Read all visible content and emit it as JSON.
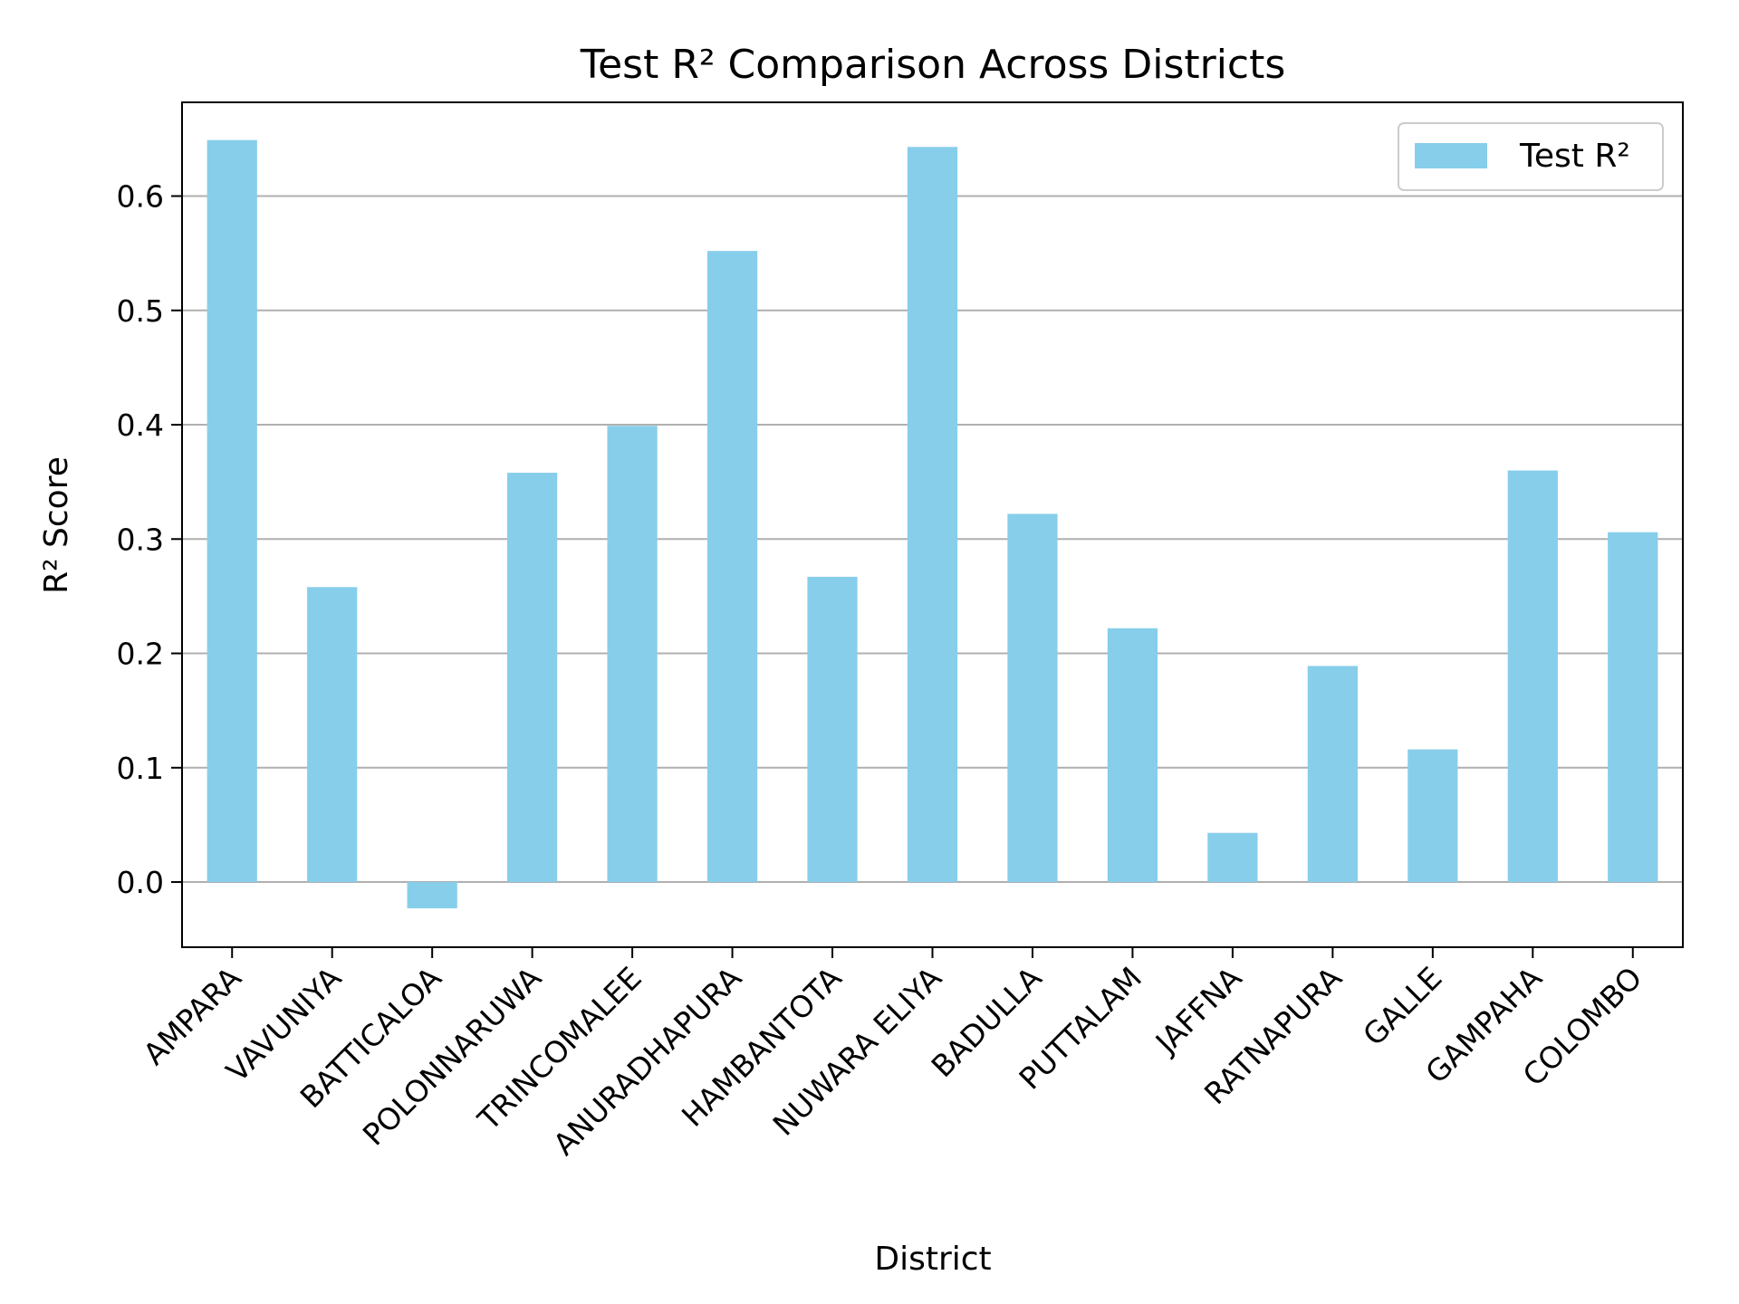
{
  "chart_data": {
    "type": "bar",
    "title": "Test R² Comparison Across Districts",
    "xlabel": "District",
    "ylabel": "R² Score",
    "categories": [
      "AMPARA",
      "VAVUNIYA",
      "BATTICALOA",
      "POLONNARUWA",
      "TRINCOMALEE",
      "ANURADHAPURA",
      "HAMBANTOTA",
      "NUWARA ELIYA",
      "BADULLA",
      "PUTTALAM",
      "JAFFNA",
      "RATNAPURA",
      "GALLE",
      "GAMPAHA",
      "COLOMBO"
    ],
    "series": [
      {
        "name": "Test R²",
        "color": "#87CEEB",
        "values": [
          0.649,
          0.258,
          -0.023,
          0.358,
          0.399,
          0.552,
          0.267,
          0.643,
          0.322,
          0.222,
          0.043,
          0.189,
          0.116,
          0.36,
          0.306
        ]
      }
    ],
    "ylim": [
      -0.057,
      0.682
    ],
    "yticks": [
      0.0,
      0.1,
      0.2,
      0.3,
      0.4,
      0.5,
      0.6
    ],
    "ytick_labels": [
      "0.0",
      "0.1",
      "0.2",
      "0.3",
      "0.4",
      "0.5",
      "0.6"
    ],
    "grid": "y",
    "legend_position": "top-right"
  }
}
